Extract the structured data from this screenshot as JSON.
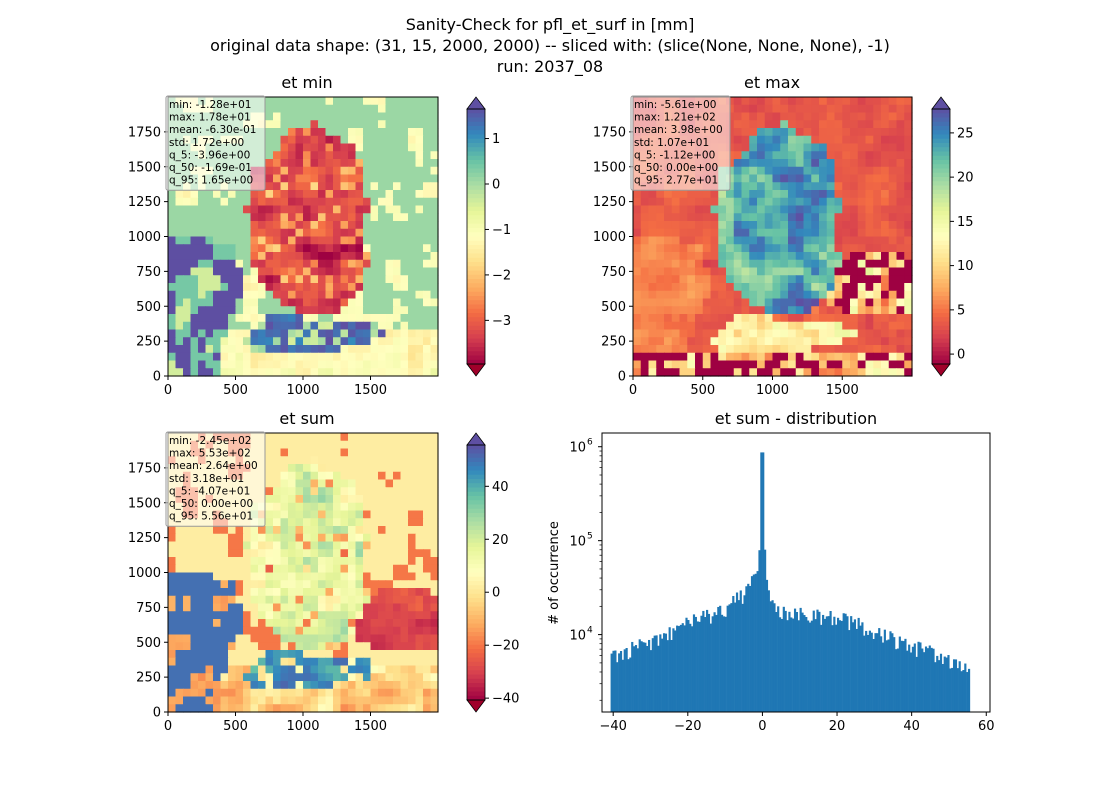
{
  "figure": {
    "title_lines": [
      "Sanity-Check for pfl_et_surf in [mm]",
      "original data shape: (31, 15, 2000, 2000) -- sliced with: (slice(None, None, None), -1)",
      "run: 2037_08"
    ]
  },
  "colormap": {
    "name": "Spectral",
    "bad_color": "#a0002a",
    "stops": [
      "#9e0142",
      "#d53e4f",
      "#f46d43",
      "#fdae61",
      "#fee08b",
      "#ffffbf",
      "#e6f598",
      "#abdda4",
      "#66c2a5",
      "#3288bd",
      "#5e4fa2"
    ]
  },
  "chart_data": [
    {
      "type": "heatmap",
      "title": "et min",
      "xlim": [
        0,
        2000
      ],
      "ylim": [
        0,
        2000
      ],
      "x_ticks": [
        0,
        500,
        1000,
        1500
      ],
      "y_ticks": [
        0,
        250,
        500,
        750,
        1000,
        1250,
        1500,
        1750
      ],
      "colorbar": {
        "vmin": -3.96,
        "vmax": 1.65,
        "ticks": [
          -3,
          -2,
          -1,
          0,
          1
        ],
        "tick_labels": [
          "−3",
          "−2",
          "−1",
          "0",
          "1"
        ],
        "extend": "both"
      },
      "stats": [
        "min: -1.28e+01",
        "max: 1.78e+01",
        "mean: -6.30e-01",
        "std: 1.72e+00",
        "q_5: -3.96e+00",
        "q_50: -1.69e-01",
        "q_95: 1.65e+00"
      ]
    },
    {
      "type": "heatmap",
      "title": "et max",
      "xlim": [
        0,
        2000
      ],
      "ylim": [
        0,
        2000
      ],
      "x_ticks": [
        0,
        500,
        1000,
        1500
      ],
      "y_ticks": [
        0,
        250,
        500,
        750,
        1000,
        1250,
        1500,
        1750
      ],
      "colorbar": {
        "vmin": -1.12,
        "vmax": 27.7,
        "ticks": [
          0,
          5,
          10,
          15,
          20,
          25
        ],
        "tick_labels": [
          "0",
          "5",
          "10",
          "15",
          "20",
          "25"
        ],
        "extend": "both"
      },
      "stats": [
        "min: -5.61e+00",
        "max: 1.21e+02",
        "mean: 3.98e+00",
        "std: 1.07e+01",
        "q_5: -1.12e+00",
        "q_50: 0.00e+00",
        "q_95: 2.77e+01"
      ]
    },
    {
      "type": "heatmap",
      "title": "et sum",
      "xlim": [
        0,
        2000
      ],
      "ylim": [
        0,
        2000
      ],
      "x_ticks": [
        0,
        500,
        1000,
        1500
      ],
      "y_ticks": [
        0,
        250,
        500,
        750,
        1000,
        1250,
        1500,
        1750
      ],
      "colorbar": {
        "vmin": -40.7,
        "vmax": 55.6,
        "ticks": [
          -40,
          -20,
          0,
          20,
          40
        ],
        "tick_labels": [
          "−40",
          "−20",
          "0",
          "20",
          "40"
        ],
        "extend": "both"
      },
      "stats": [
        "min: -2.45e+02",
        "max: 5.53e+02",
        "mean: 2.64e+00",
        "std: 3.18e+01",
        "q_5: -4.07e+01",
        "q_50: 0.00e+00",
        "q_95: 5.56e+01"
      ]
    },
    {
      "type": "bar",
      "title": "et sum - distribution",
      "ylabel": "# of occurrence",
      "xlim": [
        -43,
        61
      ],
      "x_ticks": [
        -40,
        -20,
        0,
        20,
        40,
        60
      ],
      "x_tick_labels": [
        "−40",
        "−20",
        "0",
        "20",
        "40",
        "60"
      ],
      "y_scale": "log",
      "ylim": [
        1500,
        1400000
      ],
      "y_ticks": [
        {
          "value": 10000,
          "base": "10",
          "exp": "4"
        },
        {
          "value": 100000,
          "base": "10",
          "exp": "5"
        },
        {
          "value": 1000000,
          "base": "10",
          "exp": "6"
        }
      ],
      "bar_color": "#1f77b4",
      "profile": [
        [
          -40.7,
          6000
        ],
        [
          -35,
          7000
        ],
        [
          -30,
          8500
        ],
        [
          -25,
          10500
        ],
        [
          -20,
          13000
        ],
        [
          -15,
          15500
        ],
        [
          -10,
          19000
        ],
        [
          -5,
          27000
        ],
        [
          -2,
          40000
        ],
        [
          -1,
          60000
        ],
        [
          -0.3,
          150000
        ],
        [
          0,
          870000
        ],
        [
          0.3,
          130000
        ],
        [
          1,
          40000
        ],
        [
          2,
          27000
        ],
        [
          5,
          18000
        ],
        [
          10,
          16500
        ],
        [
          20,
          15000
        ],
        [
          25,
          13000
        ],
        [
          30,
          10500
        ],
        [
          35,
          9000
        ],
        [
          40,
          7500
        ],
        [
          45,
          6500
        ],
        [
          50,
          5500
        ],
        [
          55.6,
          4500
        ]
      ],
      "bin_count": 192
    }
  ]
}
